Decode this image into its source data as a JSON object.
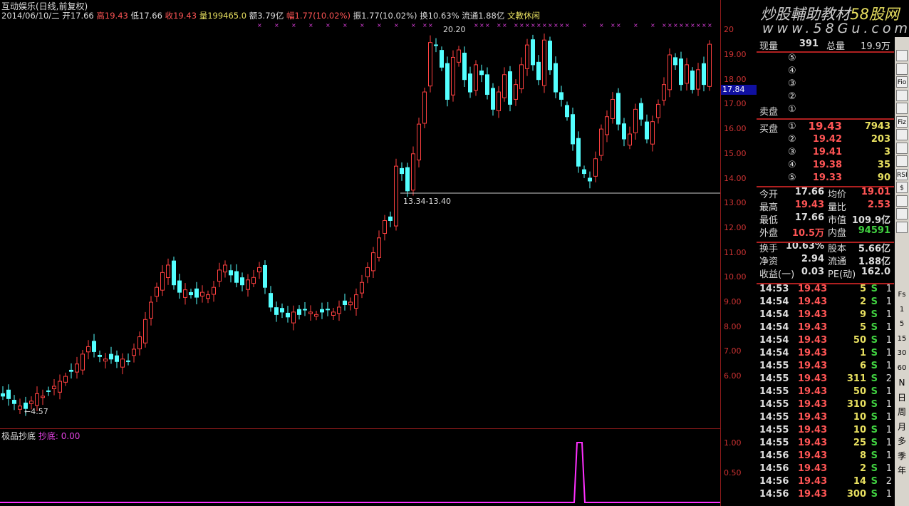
{
  "header": {
    "title": "互动娱乐(日线,前复权)",
    "date": "2014/06/10/二",
    "open": "开17.66",
    "high": "高19.43",
    "low": "低17.66",
    "close": "收19.43",
    "volume": "量199465.0",
    "amount": "额3.79亿",
    "rise": "幅1.77(10.02%)",
    "amplitude": "振1.77(10.02%)",
    "turnover": "换10.63%",
    "float": "流通1.88亿",
    "sector": "文教休闲"
  },
  "watermark": {
    "cn": "炒股輔助教材",
    "brand": "58股网",
    "url": "www.58Gu.com"
  },
  "colors": {
    "up": "#ff4040",
    "down": "#54ffff",
    "accent": "#ff40ff"
  },
  "chart_data": {
    "type": "candlestick",
    "closes": [
      5.2,
      5.1,
      4.9,
      4.8,
      4.7,
      5.0,
      5.3,
      5.2,
      5.4,
      5.6,
      5.8,
      6.0,
      6.2,
      6.5,
      6.9,
      7.2,
      7.0,
      6.8,
      6.7,
      6.7,
      6.6,
      6.7,
      6.6,
      7.1,
      7.6,
      8.3,
      9.0,
      9.6,
      10.2,
      10.5,
      9.7,
      9.4,
      9.5,
      9.3,
      9.2,
      9.4,
      9.3,
      9.6,
      10.3,
      10.5,
      10.1,
      9.8,
      9.7,
      9.9,
      10.0,
      10.4,
      9.6,
      8.8,
      8.5,
      8.6,
      8.4,
      8.6,
      8.5,
      8.7,
      8.6,
      8.5,
      8.6,
      8.7,
      8.6,
      8.8,
      8.9,
      9.0,
      9.3,
      9.8,
      10.4,
      11.0,
      11.6,
      12.3,
      12.3,
      14.5,
      14.2,
      13.5,
      15.0,
      16.2,
      17.5,
      19.5,
      19.4,
      18.5,
      17.2,
      18.9,
      19.2,
      18.0,
      17.5,
      18.6,
      18.2,
      17.4,
      16.8,
      17.5,
      18.2,
      17.0,
      17.8,
      18.6,
      19.4,
      18.6,
      18.0,
      19.6,
      18.4,
      17.5,
      17.2,
      16.5,
      15.4,
      14.5,
      14.2,
      13.9,
      14.8,
      16.0,
      16.5,
      17.2,
      16.2,
      15.6,
      15.8,
      16.8,
      16.4,
      15.6,
      16.3,
      17.0,
      17.8,
      19.0,
      18.6,
      17.8,
      18.6,
      17.6,
      18.4,
      17.8,
      19.43
    ],
    "y_ticks": [
      "20",
      "19.00",
      "18.00",
      "17.00",
      "16.00",
      "15.00",
      "14.00",
      "13.00",
      "12.00",
      "11.00",
      "10.00",
      "9.00",
      "8.00",
      "7.00",
      "6.00"
    ],
    "current_price": "17.84",
    "max_label": "20.20",
    "min_label": "←4.57",
    "gap_label": "13.34-13.40"
  },
  "indicator": {
    "name": "极品抄底",
    "series": "抄底: 0.00",
    "y_ticks": [
      "1.00",
      "0.50"
    ],
    "spike_index": 101
  },
  "quote": {
    "now_vol_label": "现量",
    "now_vol": "391",
    "total_vol_label": "总量",
    "total_vol": "19.9万",
    "sell_label": "卖盘",
    "buy_label": "买盘",
    "sell": [
      {
        "lv": "⑤"
      },
      {
        "lv": "④"
      },
      {
        "lv": "③"
      },
      {
        "lv": "②"
      },
      {
        "lv": "①"
      }
    ],
    "buy": [
      {
        "lv": "①",
        "price": "19.43",
        "vol": "7943"
      },
      {
        "lv": "②",
        "price": "19.42",
        "vol": "203"
      },
      {
        "lv": "③",
        "price": "19.41",
        "vol": "3"
      },
      {
        "lv": "④",
        "price": "19.38",
        "vol": "35"
      },
      {
        "lv": "⑤",
        "price": "19.33",
        "vol": "90"
      }
    ],
    "stats": [
      {
        "l1": "今开",
        "v1": "17.66",
        "c1": "w",
        "l2": "均价",
        "v2": "19.01",
        "c2": "r"
      },
      {
        "l1": "最高",
        "v1": "19.43",
        "c1": "r",
        "l2": "量比",
        "v2": "2.53",
        "c2": "r"
      },
      {
        "l1": "最低",
        "v1": "17.66",
        "c1": "w",
        "l2": "市值",
        "v2": "109.9亿",
        "c2": "w"
      },
      {
        "l1": "外盘",
        "v1": "10.5万",
        "c1": "r",
        "l2": "内盘",
        "v2": "94591",
        "c2": "g"
      },
      {
        "l1": "换手",
        "v1": "10.63%",
        "c1": "w",
        "l2": "股本",
        "v2": "5.66亿",
        "c2": "w"
      },
      {
        "l1": "净资",
        "v1": "2.94",
        "c1": "w",
        "l2": "流通",
        "v2": "1.88亿",
        "c2": "w"
      },
      {
        "l1": "收益(一)",
        "v1": "0.03",
        "c1": "w",
        "l2": "PE(动)",
        "v2": "162.0",
        "c2": "w"
      }
    ]
  },
  "ticks": [
    [
      "14:53",
      "19.43",
      "5",
      "S",
      "1"
    ],
    [
      "14:54",
      "19.43",
      "2",
      "S",
      "1"
    ],
    [
      "14:54",
      "19.43",
      "9",
      "S",
      "1"
    ],
    [
      "14:54",
      "19.43",
      "5",
      "S",
      "1"
    ],
    [
      "14:54",
      "19.43",
      "50",
      "S",
      "1"
    ],
    [
      "14:54",
      "19.43",
      "1",
      "S",
      "1"
    ],
    [
      "14:55",
      "19.43",
      "6",
      "S",
      "1"
    ],
    [
      "14:55",
      "19.43",
      "311",
      "S",
      "2"
    ],
    [
      "14:55",
      "19.43",
      "50",
      "S",
      "1"
    ],
    [
      "14:55",
      "19.43",
      "310",
      "S",
      "1"
    ],
    [
      "14:55",
      "19.43",
      "10",
      "S",
      "1"
    ],
    [
      "14:55",
      "19.43",
      "10",
      "S",
      "1"
    ],
    [
      "14:55",
      "19.43",
      "25",
      "S",
      "1"
    ],
    [
      "14:56",
      "19.43",
      "8",
      "S",
      "1"
    ],
    [
      "14:56",
      "19.43",
      "2",
      "S",
      "1"
    ],
    [
      "14:56",
      "19.43",
      "14",
      "S",
      "2"
    ],
    [
      "14:56",
      "19.43",
      "300",
      "S",
      "1"
    ]
  ],
  "toolbar": {
    "icons": [
      "candle",
      "list",
      "Fio",
      "note",
      "book",
      "Fiz",
      "fx",
      "zoom",
      "wave",
      "RSI",
      "$",
      "move",
      "plus",
      "pencil"
    ],
    "periods": [
      "Fs",
      "1",
      "5",
      "15",
      "30",
      "60",
      "N",
      "日",
      "周",
      "月",
      "多",
      "季",
      "年"
    ]
  }
}
